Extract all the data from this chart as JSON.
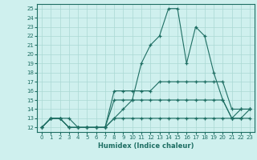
{
  "xlabel": "Humidex (Indice chaleur)",
  "bg_color": "#cff0ee",
  "line_color": "#1e6e63",
  "grid_color": "#aad8d3",
  "xlim": [
    -0.5,
    23.5
  ],
  "ylim": [
    11.5,
    25.5
  ],
  "xticks": [
    0,
    1,
    2,
    3,
    4,
    5,
    6,
    7,
    8,
    9,
    10,
    11,
    12,
    13,
    14,
    15,
    16,
    17,
    18,
    19,
    20,
    21,
    22,
    23
  ],
  "yticks": [
    12,
    13,
    14,
    15,
    16,
    17,
    18,
    19,
    20,
    21,
    22,
    23,
    24,
    25
  ],
  "series": [
    {
      "x": [
        0,
        1,
        2,
        3,
        4,
        5,
        6,
        7,
        8,
        9,
        10,
        11,
        12,
        13,
        14,
        15,
        16,
        17,
        18,
        19,
        20,
        21,
        22,
        23
      ],
      "y": [
        12,
        13,
        13,
        13,
        12,
        12,
        12,
        12,
        13,
        14,
        15,
        19,
        21,
        22,
        25,
        25,
        19,
        23,
        22,
        18,
        15,
        13,
        14,
        14
      ]
    },
    {
      "x": [
        0,
        1,
        2,
        3,
        4,
        5,
        6,
        7,
        8,
        9,
        10,
        11,
        12,
        13,
        14,
        15,
        16,
        17,
        18,
        19,
        20,
        21,
        22,
        23
      ],
      "y": [
        12,
        13,
        13,
        12,
        12,
        12,
        12,
        12,
        16,
        16,
        16,
        16,
        16,
        17,
        17,
        17,
        17,
        17,
        17,
        17,
        17,
        14,
        14,
        14
      ]
    },
    {
      "x": [
        0,
        1,
        2,
        3,
        4,
        5,
        6,
        7,
        8,
        9,
        10,
        11,
        12,
        13,
        14,
        15,
        16,
        17,
        18,
        19,
        20,
        21,
        22,
        23
      ],
      "y": [
        12,
        13,
        13,
        12,
        12,
        12,
        12,
        12,
        15,
        15,
        15,
        15,
        15,
        15,
        15,
        15,
        15,
        15,
        15,
        15,
        15,
        13,
        13,
        14
      ]
    },
    {
      "x": [
        0,
        1,
        2,
        3,
        4,
        5,
        6,
        7,
        8,
        9,
        10,
        11,
        12,
        13,
        14,
        15,
        16,
        17,
        18,
        19,
        20,
        21,
        22,
        23
      ],
      "y": [
        12,
        13,
        13,
        12,
        12,
        12,
        12,
        12,
        13,
        13,
        13,
        13,
        13,
        13,
        13,
        13,
        13,
        13,
        13,
        13,
        13,
        13,
        13,
        13
      ]
    }
  ]
}
